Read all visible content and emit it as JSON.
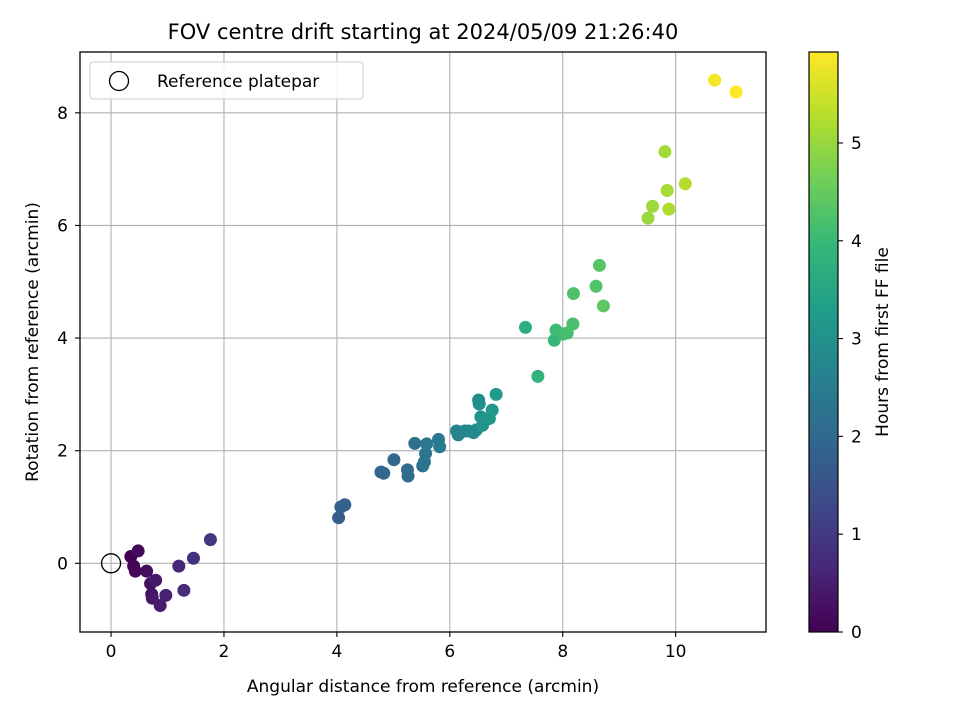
{
  "chart_data": {
    "type": "scatter",
    "title": "FOV centre drift starting at 2024/05/09 21:26:40",
    "xlabel": "Angular distance from reference (arcmin)",
    "ylabel": "Rotation from reference (arcmin)",
    "xlim": [
      -0.55,
      11.6
    ],
    "ylim": [
      -1.22,
      9.08
    ],
    "xticks": [
      0,
      2,
      4,
      6,
      8,
      10
    ],
    "yticks": [
      0,
      2,
      4,
      6,
      8
    ],
    "grid": true,
    "legend": {
      "placement": "top-left",
      "entries": [
        "Reference platepar"
      ]
    },
    "reference_point": {
      "x": 0,
      "y": 0,
      "label": "Reference platepar"
    },
    "colorbar": {
      "label": "Hours from first FF file",
      "range": [
        0,
        5.93
      ],
      "ticks": [
        0,
        1,
        2,
        3,
        4,
        5
      ],
      "colormap": "viridis"
    },
    "x": [
      0.35,
      0.4,
      0.43,
      0.48,
      0.63,
      0.7,
      0.72,
      0.73,
      0.79,
      0.87,
      0.97,
      1.2,
      1.29,
      1.46,
      1.76,
      4.03,
      4.07,
      4.14,
      4.78,
      4.83,
      5.01,
      5.25,
      5.26,
      5.38,
      5.52,
      5.55,
      5.57,
      5.59,
      5.8,
      5.82,
      6.12,
      6.15,
      6.26,
      6.33,
      6.42,
      6.47,
      6.51,
      6.52,
      6.55,
      6.58,
      6.7,
      6.75,
      6.82,
      7.34,
      7.56,
      7.85,
      7.88,
      8.0,
      8.08,
      8.18,
      8.19,
      8.59,
      8.65,
      8.72,
      9.51,
      9.59,
      9.81,
      9.85,
      9.88,
      10.17,
      10.69,
      11.07
    ],
    "y": [
      0.12,
      -0.05,
      -0.14,
      0.22,
      -0.14,
      -0.36,
      -0.55,
      -0.62,
      -0.3,
      -0.75,
      -0.57,
      -0.05,
      -0.48,
      0.09,
      0.42,
      0.81,
      1.0,
      1.04,
      1.62,
      1.6,
      1.84,
      1.66,
      1.55,
      2.13,
      1.73,
      1.8,
      1.95,
      2.12,
      2.2,
      2.07,
      2.35,
      2.28,
      2.35,
      2.35,
      2.32,
      2.37,
      2.9,
      2.83,
      2.6,
      2.45,
      2.57,
      2.72,
      3.0,
      4.19,
      3.32,
      3.96,
      4.14,
      4.07,
      4.09,
      4.25,
      4.79,
      4.92,
      5.29,
      4.57,
      6.13,
      6.34,
      7.31,
      6.62,
      6.29,
      6.74,
      8.58,
      8.37
    ],
    "hours": [
      0.0,
      0.05,
      0.1,
      0.15,
      0.2,
      0.25,
      0.3,
      0.35,
      0.4,
      0.45,
      0.55,
      0.65,
      0.75,
      0.85,
      0.95,
      1.75,
      1.8,
      1.85,
      1.9,
      1.95,
      2.0,
      2.05,
      2.1,
      2.15,
      2.2,
      2.25,
      2.3,
      2.35,
      2.4,
      2.45,
      2.6,
      2.65,
      2.7,
      2.75,
      2.8,
      2.85,
      2.9,
      2.95,
      3.0,
      3.05,
      3.1,
      3.15,
      3.2,
      3.75,
      3.85,
      3.95,
      4.05,
      4.1,
      4.15,
      4.2,
      4.25,
      4.3,
      4.35,
      4.4,
      5.0,
      5.05,
      5.1,
      5.15,
      5.2,
      5.25,
      5.85,
      5.93
    ]
  },
  "colors": {
    "viridis_stops": [
      "#440154",
      "#482878",
      "#3e4a89",
      "#31688e",
      "#26828e",
      "#1f9e89",
      "#35b779",
      "#6ece58",
      "#b5de2b",
      "#fde725"
    ],
    "grid": "#b0b0b0",
    "axes": "#000000"
  }
}
